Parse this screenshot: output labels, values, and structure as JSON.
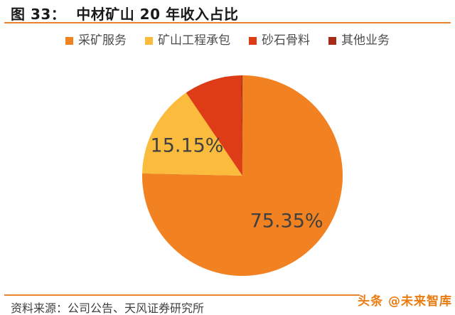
{
  "figure": {
    "title": "图 33：  中材矿山 20 年收入占比",
    "source": "资料来源：公司公告、天风证券研究所",
    "watermark": "头条 @未来智库"
  },
  "colors": {
    "background": "#FFFFFF",
    "accent_line": "#E8852B",
    "title_text": "#1A1A1A",
    "legend_text": "#4D4D4D",
    "label_text": "#404040",
    "source_text": "#404040",
    "watermark_text": "#E87C10"
  },
  "chart_data": {
    "type": "pie",
    "title": "中材矿山 20 年收入占比",
    "legend_position": "top",
    "start_angle_deg": 0,
    "direction": "clockwise",
    "slices": [
      {
        "name": "采矿服务",
        "value": 75.35,
        "label": "75.35%",
        "color": "#F28221",
        "labeled_on_chart": true
      },
      {
        "name": "矿山工程承包",
        "value": 15.15,
        "label": "15.15%",
        "color": "#FBBB3D",
        "labeled_on_chart": true
      },
      {
        "name": "砂石骨料",
        "value": 9.3,
        "label": "",
        "color": "#DE3B17",
        "labeled_on_chart": false,
        "estimated": true
      },
      {
        "name": "其他业务",
        "value": 0.2,
        "label": "",
        "color": "#A62C16",
        "labeled_on_chart": false,
        "estimated": true
      }
    ]
  }
}
